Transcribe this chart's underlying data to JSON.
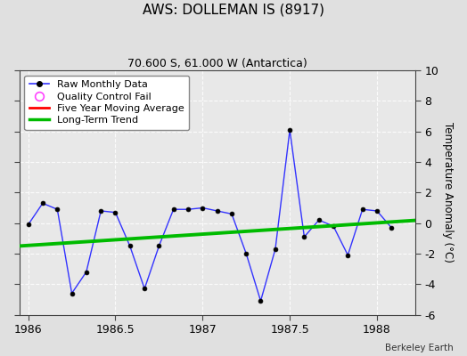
{
  "title": "AWS: DOLLEMAN IS (8917)",
  "subtitle": "70.600 S, 61.000 W (Antarctica)",
  "attribution": "Berkeley Earth",
  "ylabel": "Temperature Anomaly (°C)",
  "xlim": [
    1985.95,
    1988.22
  ],
  "ylim": [
    -6,
    10
  ],
  "yticks": [
    -6,
    -4,
    -2,
    0,
    2,
    4,
    6,
    8,
    10
  ],
  "xticks": [
    1986,
    1986.5,
    1987,
    1987.5,
    1988
  ],
  "xtick_labels": [
    "1986",
    "1986.5",
    "1987",
    "1987.5",
    "1988"
  ],
  "background_color": "#e0e0e0",
  "plot_bg_color": "#e8e8e8",
  "raw_x": [
    1986.0,
    1986.083,
    1986.167,
    1986.25,
    1986.333,
    1986.417,
    1986.5,
    1986.583,
    1986.667,
    1986.75,
    1986.833,
    1986.917,
    1987.0,
    1987.083,
    1987.167,
    1987.25,
    1987.333,
    1987.417,
    1987.5,
    1987.583,
    1987.667,
    1987.75,
    1987.833,
    1987.917,
    1988.0,
    1988.083
  ],
  "raw_y": [
    -0.1,
    1.3,
    0.9,
    -4.6,
    -3.2,
    0.8,
    0.7,
    -1.5,
    -4.3,
    -1.5,
    0.9,
    0.9,
    1.0,
    0.8,
    0.6,
    -2.0,
    -5.1,
    -1.7,
    6.1,
    -0.9,
    0.2,
    -0.2,
    -2.1,
    0.9,
    0.8,
    -0.3
  ],
  "trend_x": [
    1985.95,
    1988.22
  ],
  "trend_y": [
    -1.5,
    0.18
  ],
  "line_color": "#3333ff",
  "marker_color": "#000000",
  "trend_color": "#00bb00",
  "mavg_color": "#ff0000",
  "legend_labels": [
    "Raw Monthly Data",
    "Quality Control Fail",
    "Five Year Moving Average",
    "Long-Term Trend"
  ],
  "legend_colors": [
    "#3333ff",
    "#ff44ff",
    "#ff0000",
    "#00bb00"
  ]
}
